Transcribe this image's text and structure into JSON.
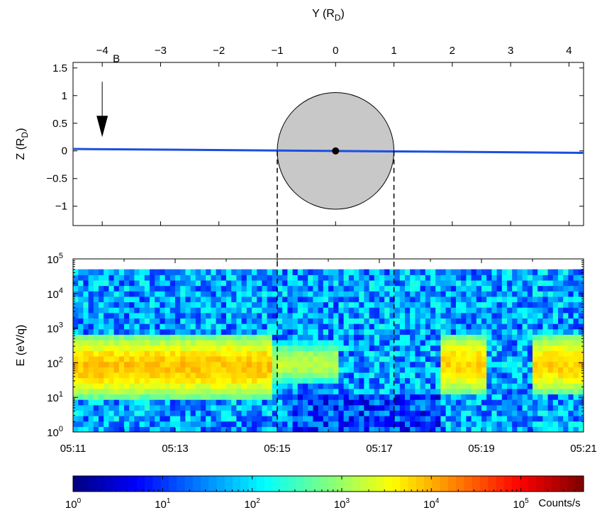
{
  "chart_data": [
    {
      "type": "line",
      "xlabel": "Y (R",
      "xlabel_sub": "D",
      "xlabel_close": ")",
      "ylabel": "Z (R",
      "ylabel_sub": "D",
      "ylabel_close": ")",
      "xlim": [
        -4.5,
        4.25
      ],
      "ylim": [
        -1.35,
        1.6
      ],
      "x_ticks": [
        "−4",
        "−3",
        "−2",
        "−1",
        "0",
        "1",
        "2",
        "3",
        "4"
      ],
      "x_tick_values": [
        -4,
        -3,
        -2,
        -1,
        0,
        1,
        2,
        3,
        4
      ],
      "y_ticks": [
        "1.5",
        "1",
        "0.5",
        "0",
        "−0.5",
        "−1"
      ],
      "y_tick_values": [
        1.5,
        1,
        0.5,
        0,
        -0.5,
        -1
      ],
      "series": [
        {
          "x": [
            -4.5,
            4.25
          ],
          "y": [
            0.035,
            -0.035
          ],
          "color": "#1a4fe0"
        }
      ],
      "body": {
        "center": [
          0,
          0
        ],
        "radius": 1,
        "fill": "#c8c8c8"
      },
      "field_arrow": {
        "label": "B",
        "x": -4,
        "y_from": 1.25,
        "y_to": 0.25
      },
      "crossing_markers_y": [
        -1,
        1
      ],
      "grid": false
    },
    {
      "type": "heatmap",
      "ylabel": "E (eV/q)",
      "y_scale": "log",
      "ylim_exp": [
        0,
        5
      ],
      "y_tick_base": "10",
      "y_tick_exponents": [
        "0",
        "1",
        "2",
        "3",
        "4",
        "5"
      ],
      "x_ticks": [
        "05:11",
        "05:13",
        "05:15",
        "05:17",
        "05:19",
        "05:21"
      ],
      "xlim_min": [
        0,
        10
      ],
      "time_ref": "05:11",
      "crossings": [
        "05:15.08",
        "05:17.35"
      ],
      "colorbar": {
        "scale": "log",
        "label": "Counts/s",
        "tick_base": "10",
        "tick_exponents": [
          "0",
          "1",
          "2",
          "3",
          "4",
          "5"
        ],
        "range_exp": [
          0,
          5.7
        ]
      },
      "bands": [
        {
          "t_start": 0,
          "t_end": 3.9,
          "e_low_exp": 0.95,
          "e_high_exp": 2.85,
          "peak_count_exp": 3.9
        },
        {
          "t_start": 3.9,
          "t_end": 5.15,
          "e_low_exp": 1.4,
          "e_high_exp": 2.6,
          "peak_count_exp": 3.2
        },
        {
          "t_start": 7.2,
          "t_end": 8.05,
          "e_low_exp": 1.05,
          "e_high_exp": 2.85,
          "peak_count_exp": 3.8
        },
        {
          "t_start": 9.0,
          "t_end": 10,
          "e_low_exp": 1.05,
          "e_high_exp": 2.85,
          "peak_count_exp": 3.8
        }
      ],
      "background_count_exp": 1.6,
      "grid": false
    }
  ]
}
